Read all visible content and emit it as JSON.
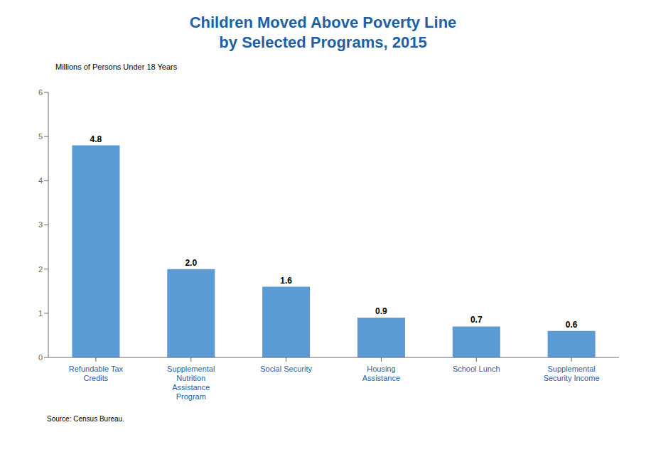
{
  "chart_data": {
    "type": "bar",
    "title": "Children Moved Above Poverty Line\nby Selected Programs, 2015",
    "ylabel": "Millions of Persons Under 18 Years",
    "categories": [
      "Refundable Tax\nCredits",
      "Supplemental\nNutrition\nAssistance\nProgram",
      "Social Security",
      "Housing\nAssistance",
      "School Lunch",
      "Supplemental\nSecurity Income"
    ],
    "values": [
      4.8,
      2.0,
      1.6,
      0.9,
      0.7,
      0.6
    ],
    "value_labels": [
      "4.8",
      "2.0",
      "1.6",
      "0.9",
      "0.7",
      "0.6"
    ],
    "data_labels": true,
    "color": "#5B9BD5",
    "ylim": [
      0,
      6
    ],
    "yticks": [
      0,
      1,
      2,
      3,
      4,
      5,
      6
    ],
    "grid": false,
    "annotations": [
      "Source: Census Bureau."
    ]
  }
}
